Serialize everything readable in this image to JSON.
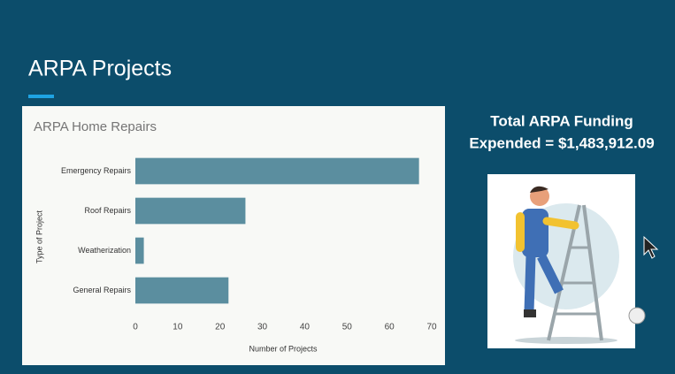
{
  "slide": {
    "title": "ARPA Projects",
    "funding_lines": [
      "Total ARPA Funding",
      "Expended = $1,483,912.09"
    ]
  },
  "chart_data": {
    "type": "bar",
    "orientation": "horizontal",
    "title": "ARPA Home Repairs",
    "categories": [
      "Emergency Repairs",
      "Roof Repairs",
      "Weatherization",
      "General Repairs"
    ],
    "values": [
      67,
      26,
      2,
      22
    ],
    "color": "#5b8e9f",
    "xlim": [
      0,
      70
    ],
    "xticks": [
      0,
      10,
      20,
      30,
      40,
      50,
      60,
      70
    ],
    "grid": false,
    "x_label": "Number of Projects",
    "y_label": "Type of Project"
  }
}
